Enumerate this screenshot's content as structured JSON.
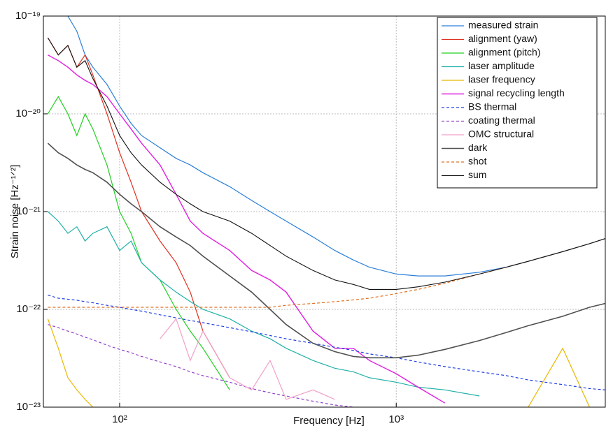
{
  "chart_data": {
    "type": "line",
    "xlabel": "Frequency  [Hz]",
    "ylabel": "Strain noise [Hz⁻¹ᐟ²]",
    "xscale": "log",
    "yscale": "log",
    "grid": true,
    "legend": "upper right",
    "xlim": [
      53,
      5700
    ],
    "ylim": [
      1e-23,
      1e-19
    ],
    "xticks": [
      {
        "value": 100,
        "label": "10²"
      },
      {
        "value": 1000,
        "label": "10³"
      }
    ],
    "yticks": [
      {
        "value": 1e-23,
        "label": "10⁻²³"
      },
      {
        "value": 1e-22,
        "label": "10⁻²²"
      },
      {
        "value": 1e-21,
        "label": "10⁻²¹"
      },
      {
        "value": 1e-20,
        "label": "10⁻²⁰"
      },
      {
        "value": 1e-19,
        "label": "10⁻¹⁹"
      }
    ],
    "x": [
      55,
      60,
      65,
      70,
      75,
      80,
      90,
      100,
      110,
      120,
      140,
      160,
      180,
      200,
      250,
      300,
      350,
      400,
      500,
      600,
      700,
      800,
      1000,
      1200,
      1500,
      2000,
      2500,
      3000,
      4000,
      5000,
      5700
    ],
    "series": [
      {
        "name": "measured strain",
        "color": "#2a7fd9",
        "width": 1.2,
        "dashed": false,
        "values": [
          1.5e-19,
          1.2e-19,
          1e-19,
          7e-20,
          4e-20,
          3e-20,
          2e-20,
          1.2e-20,
          8e-21,
          6e-21,
          4.5e-21,
          3.5e-21,
          3e-21,
          2.5e-21,
          1.8e-21,
          1.3e-21,
          1e-21,
          8e-22,
          5.5e-22,
          4e-22,
          3.2e-22,
          2.7e-22,
          2.3e-22,
          2.2e-22,
          2.2e-22,
          2.4e-22,
          2.7e-22,
          3.1e-22,
          3.9e-22,
          4.7e-22,
          5.3e-22
        ]
      },
      {
        "name": "alignment (yaw)",
        "color": "#e03020",
        "width": 1.2,
        "dashed": false,
        "values": [
          6e-20,
          4e-20,
          5e-20,
          3e-20,
          4e-20,
          2.5e-20,
          1e-20,
          4e-21,
          2e-21,
          1e-21,
          5e-22,
          3e-22,
          1.5e-22,
          6e-23,
          2e-23,
          null,
          null,
          null,
          null,
          null,
          null,
          null,
          null,
          null,
          null,
          null,
          null,
          null,
          null,
          null,
          null
        ]
      },
      {
        "name": "alignment (pitch)",
        "color": "#20d020",
        "width": 1.2,
        "dashed": false,
        "values": [
          1e-20,
          1.5e-20,
          1e-20,
          6e-21,
          1e-20,
          7e-21,
          3e-21,
          1e-21,
          6e-22,
          3e-22,
          2e-22,
          1e-22,
          6e-23,
          4e-23,
          1.5e-23,
          null,
          null,
          null,
          null,
          null,
          null,
          null,
          null,
          null,
          null,
          null,
          null,
          null,
          null,
          null,
          null
        ]
      },
      {
        "name": "laser amplitude",
        "color": "#20b0a8",
        "width": 1.2,
        "dashed": false,
        "values": [
          1e-21,
          8e-22,
          6e-22,
          7e-22,
          5e-22,
          6e-22,
          7e-22,
          4e-22,
          5e-22,
          3e-22,
          2e-22,
          1.5e-22,
          1.2e-22,
          1e-22,
          8e-23,
          6e-23,
          5e-23,
          4e-23,
          3e-23,
          2.5e-23,
          2.3e-23,
          2e-23,
          1.8e-23,
          1.6e-23,
          1.5e-23,
          1.3e-23,
          null,
          null,
          null,
          null,
          null
        ]
      },
      {
        "name": "laser frequency",
        "color": "#e8b800",
        "width": 1.2,
        "dashed": false,
        "values": [
          8e-23,
          4e-23,
          2e-23,
          1.5e-23,
          1.2e-23,
          1e-23,
          null,
          null,
          null,
          null,
          null,
          null,
          null,
          null,
          null,
          null,
          null,
          null,
          null,
          null,
          null,
          null,
          null,
          null,
          null,
          null,
          null,
          1e-23,
          4e-23,
          1e-23,
          null
        ]
      },
      {
        "name": "signal recycling length",
        "color": "#e020e0",
        "width": 1.4,
        "dashed": false,
        "values": [
          4e-20,
          3.5e-20,
          3e-20,
          2.5e-20,
          2.2e-20,
          2e-20,
          1.5e-20,
          1e-20,
          7e-21,
          5e-21,
          3e-21,
          1.5e-21,
          8e-22,
          6e-22,
          4e-22,
          2.5e-22,
          2e-22,
          1.5e-22,
          6e-23,
          4e-23,
          4e-23,
          3e-23,
          2.2e-23,
          1.6e-23,
          1.1e-23,
          null,
          null,
          null,
          null,
          null,
          null
        ]
      },
      {
        "name": "BS thermal",
        "color": "#2040e0",
        "width": 1.2,
        "dashed": true,
        "values": [
          1.4e-22,
          1.3e-22,
          1.27e-22,
          1.24e-22,
          1.2e-22,
          1.17e-22,
          1.1e-22,
          1.05e-22,
          1e-22,
          9.6e-23,
          8.8e-23,
          8.2e-23,
          7.7e-23,
          7.3e-23,
          6.5e-23,
          5.9e-23,
          5.4e-23,
          5e-23,
          4.5e-23,
          4.1e-23,
          3.8e-23,
          3.5e-23,
          3.2e-23,
          2.9e-23,
          2.6e-23,
          2.3e-23,
          2.1e-23,
          1.9e-23,
          1.7e-23,
          1.55e-23,
          1.5e-23
        ]
      },
      {
        "name": "coating thermal",
        "color": "#9040c8",
        "width": 1.2,
        "dashed": true,
        "values": [
          7e-23,
          6.5e-23,
          6e-23,
          5.6e-23,
          5.2e-23,
          4.9e-23,
          4.3e-23,
          3.9e-23,
          3.6e-23,
          3.3e-23,
          2.9e-23,
          2.6e-23,
          2.3e-23,
          2.1e-23,
          1.8e-23,
          1.55e-23,
          1.4e-23,
          1.3e-23,
          1.15e-23,
          1.05e-23,
          1e-23,
          null,
          null,
          null,
          null,
          null,
          null,
          null,
          null,
          null,
          null
        ]
      },
      {
        "name": "OMC structural",
        "color": "#f0a0c8",
        "width": 1.2,
        "dashed": false,
        "values": [
          null,
          null,
          null,
          null,
          null,
          null,
          null,
          null,
          null,
          null,
          5e-23,
          8e-23,
          3e-23,
          6e-23,
          2e-23,
          1.5e-23,
          3e-23,
          1.2e-23,
          1.5e-23,
          1.2e-23,
          null,
          null,
          null,
          null,
          null,
          null,
          null,
          null,
          null,
          null,
          null
        ]
      },
      {
        "name": "dark",
        "color": "#505050",
        "width": 1.6,
        "dashed": false,
        "values": [
          5e-21,
          4e-21,
          3.5e-21,
          3e-21,
          2.7e-21,
          2.5e-21,
          2e-21,
          1.5e-21,
          1.2e-21,
          1e-21,
          7e-22,
          5.5e-22,
          4.5e-22,
          3.5e-22,
          2.2e-22,
          1.5e-22,
          1e-22,
          7e-23,
          4.5e-23,
          3.7e-23,
          3.3e-23,
          3.2e-23,
          3.2e-23,
          3.4e-23,
          3.9e-23,
          4.8e-23,
          5.8e-23,
          6.8e-23,
          8.5e-23,
          1.05e-22,
          1.15e-22
        ]
      },
      {
        "name": "shot",
        "color": "#e07020",
        "width": 1.2,
        "dashed": true,
        "values": [
          1.05e-22,
          1.05e-22,
          1.05e-22,
          1.05e-22,
          1.05e-22,
          1.05e-22,
          1.05e-22,
          1.05e-22,
          1.05e-22,
          1.05e-22,
          1.05e-22,
          1.05e-22,
          1.05e-22,
          1.05e-22,
          1.05e-22,
          1.05e-22,
          1.05e-22,
          1.1e-22,
          1.15e-22,
          1.2e-22,
          1.25e-22,
          1.3e-22,
          1.45e-22,
          1.6e-22,
          1.85e-22,
          2.3e-22,
          2.7e-22,
          3.1e-22,
          3.9e-22,
          4.7e-22,
          5.3e-22
        ]
      },
      {
        "name": "sum",
        "color": "#111111",
        "width": 1.1,
        "dashed": false,
        "values": [
          6e-20,
          4e-20,
          5e-20,
          3e-20,
          3.5e-20,
          2.3e-20,
          1.2e-20,
          6e-21,
          4e-21,
          3e-21,
          2e-21,
          1.5e-21,
          1.2e-21,
          1e-21,
          8e-22,
          6e-22,
          4.5e-22,
          3.5e-22,
          2.5e-22,
          2e-22,
          1.8e-22,
          1.6e-22,
          1.6e-22,
          1.7e-22,
          1.9e-22,
          2.3e-22,
          2.7e-22,
          3.1e-22,
          3.9e-22,
          4.7e-22,
          5.3e-22
        ]
      }
    ]
  }
}
